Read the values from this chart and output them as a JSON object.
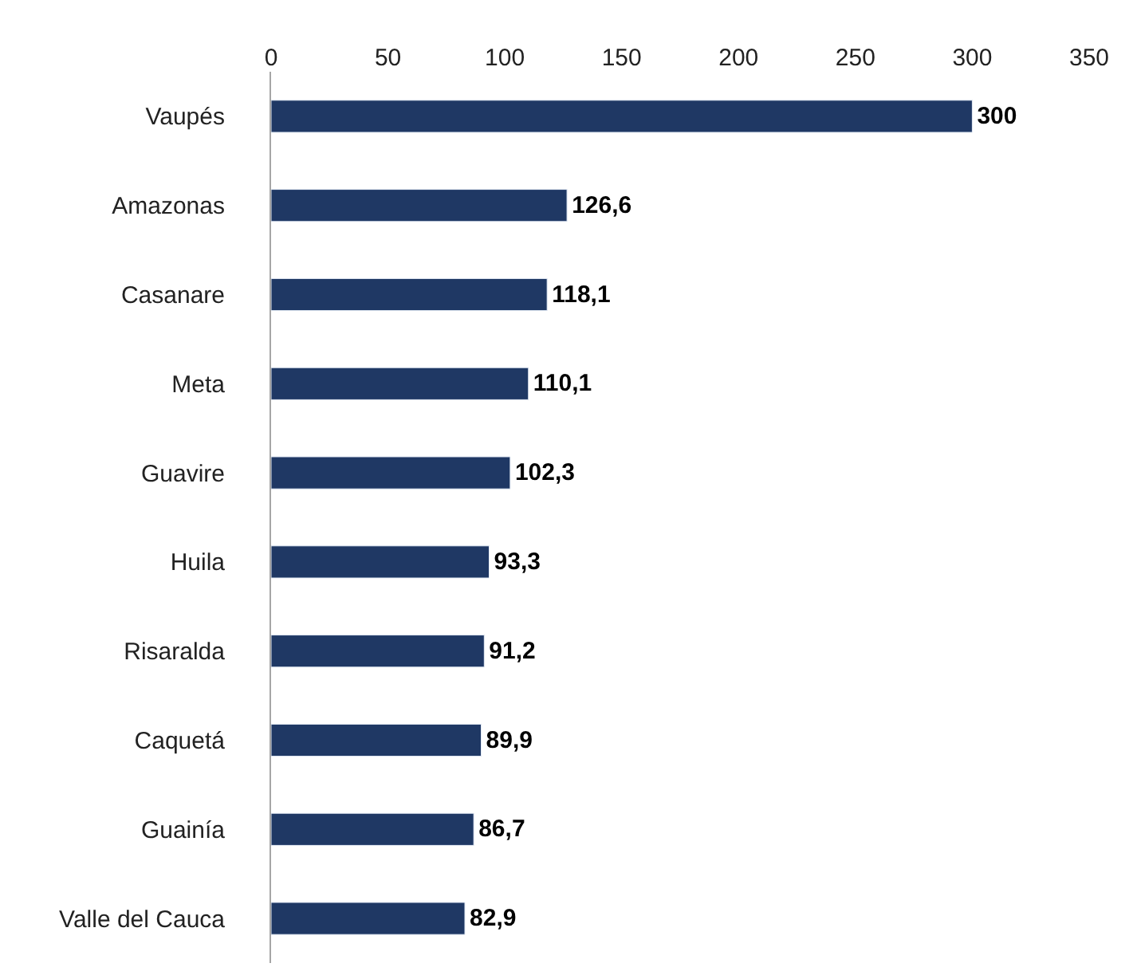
{
  "chart_data": {
    "type": "bar",
    "orientation": "horizontal",
    "categories": [
      "Vaupés",
      "Amazonas",
      "Casanare",
      "Meta",
      "Guavire",
      "Huila",
      "Risaralda",
      "Caquetá",
      "Guainía",
      "Valle del Cauca"
    ],
    "values": [
      300,
      126.6,
      118.1,
      110.1,
      102.3,
      93.3,
      91.2,
      89.9,
      86.7,
      82.9
    ],
    "value_labels": [
      "300",
      "126,6",
      "118,1",
      "110,1",
      "102,3",
      "93,3",
      "91,2",
      "89,9",
      "86,7",
      "82,9"
    ],
    "color": "#1f3864",
    "xlim": [
      0,
      350
    ],
    "xticks": [
      0,
      50,
      100,
      150,
      200,
      250,
      300,
      350
    ],
    "legend": false
  }
}
